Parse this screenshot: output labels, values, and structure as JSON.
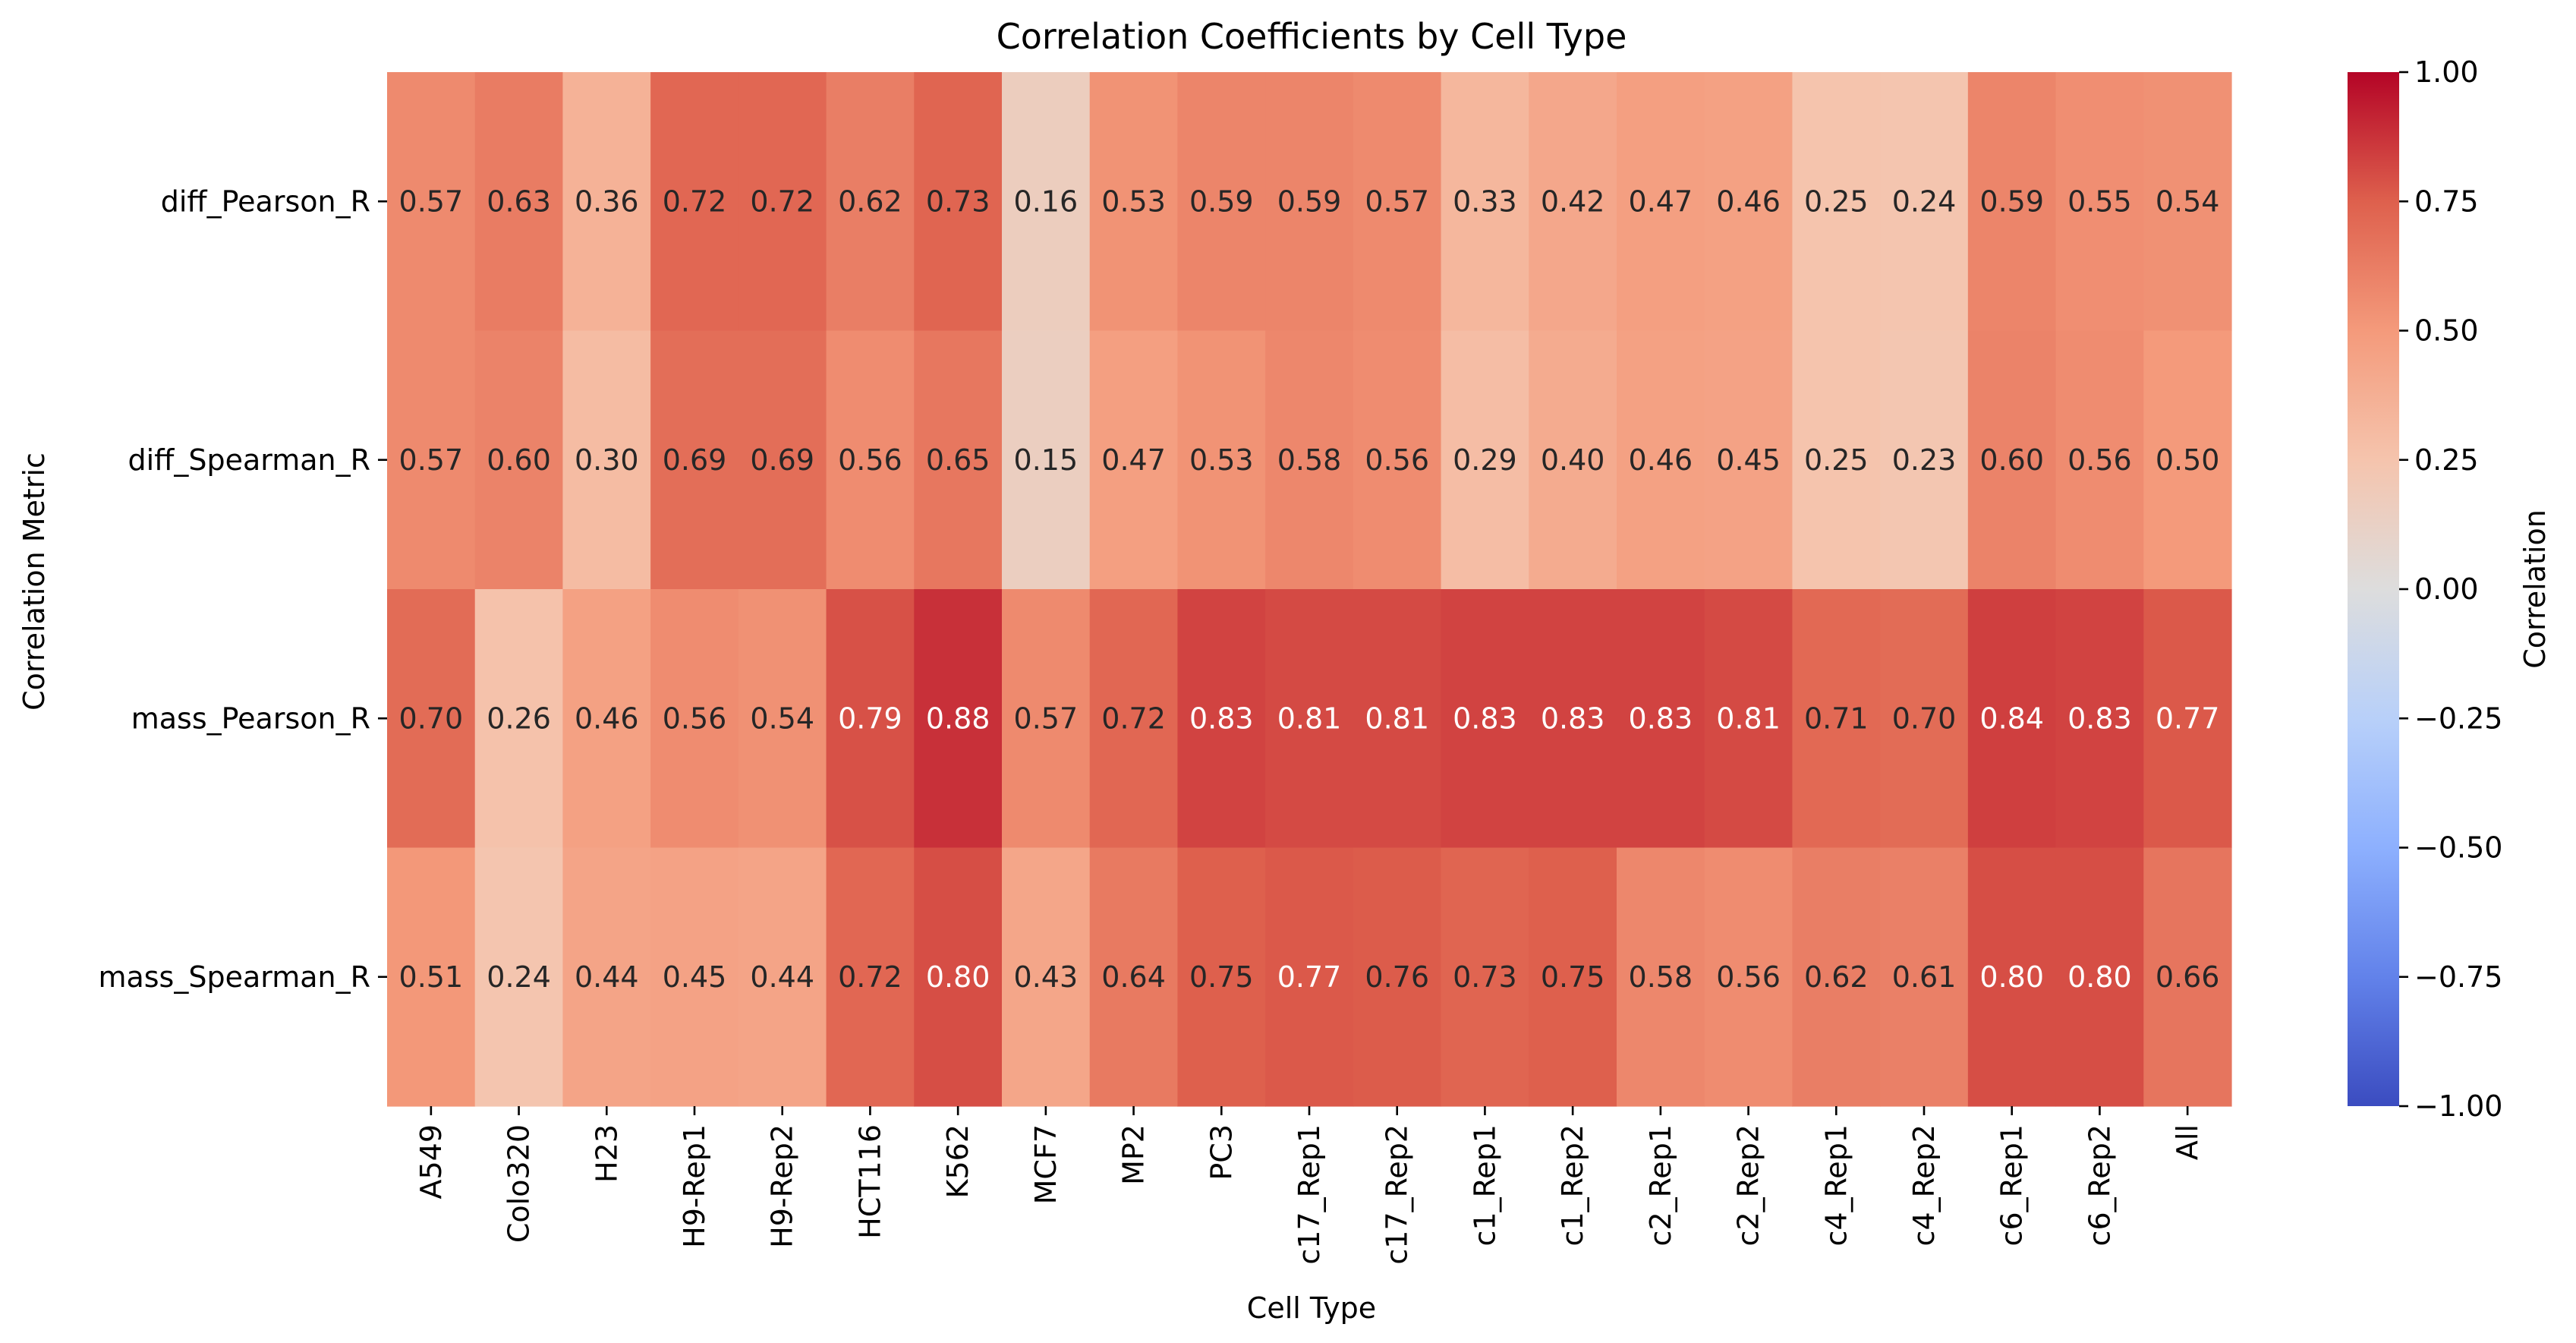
{
  "chart_data": {
    "type": "heatmap",
    "title": "Correlation Coefficients by Cell Type",
    "xlabel": "Cell Type",
    "ylabel": "Correlation Metric",
    "colorbar_label": "Correlation",
    "colormap": "coolwarm",
    "vmin": -1.0,
    "vmax": 1.0,
    "colorbar_ticks": [
      "1.00",
      "0.75",
      "0.50",
      "0.25",
      "0.00",
      "−0.25",
      "−0.50",
      "−0.75",
      "−1.00"
    ],
    "x_categories": [
      "A549",
      "Colo320",
      "H23",
      "H9-Rep1",
      "H9-Rep2",
      "HCT116",
      "K562",
      "MCF7",
      "MP2",
      "PC3",
      "c17_Rep1",
      "c17_Rep2",
      "c1_Rep1",
      "c1_Rep2",
      "c2_Rep1",
      "c2_Rep2",
      "c4_Rep1",
      "c4_Rep2",
      "c6_Rep1",
      "c6_Rep2",
      "All"
    ],
    "y_categories": [
      "diff_Pearson_R",
      "diff_Spearman_R",
      "mass_Pearson_R",
      "mass_Spearman_R"
    ],
    "values": [
      [
        0.57,
        0.63,
        0.36,
        0.72,
        0.72,
        0.62,
        0.73,
        0.16,
        0.53,
        0.59,
        0.59,
        0.57,
        0.33,
        0.42,
        0.47,
        0.46,
        0.25,
        0.24,
        0.59,
        0.55,
        0.54
      ],
      [
        0.57,
        0.6,
        0.3,
        0.69,
        0.69,
        0.56,
        0.65,
        0.15,
        0.47,
        0.53,
        0.58,
        0.56,
        0.29,
        0.4,
        0.46,
        0.45,
        0.25,
        0.23,
        0.6,
        0.56,
        0.5
      ],
      [
        0.7,
        0.26,
        0.46,
        0.56,
        0.54,
        0.79,
        0.88,
        0.57,
        0.72,
        0.83,
        0.81,
        0.81,
        0.83,
        0.83,
        0.83,
        0.81,
        0.71,
        0.7,
        0.84,
        0.83,
        0.77
      ],
      [
        0.51,
        0.24,
        0.44,
        0.45,
        0.44,
        0.72,
        0.8,
        0.43,
        0.64,
        0.75,
        0.77,
        0.76,
        0.73,
        0.75,
        0.58,
        0.56,
        0.62,
        0.61,
        0.8,
        0.8,
        0.66
      ]
    ],
    "value_format": "2 decimals",
    "grid": false,
    "legend": "colorbar-right"
  }
}
